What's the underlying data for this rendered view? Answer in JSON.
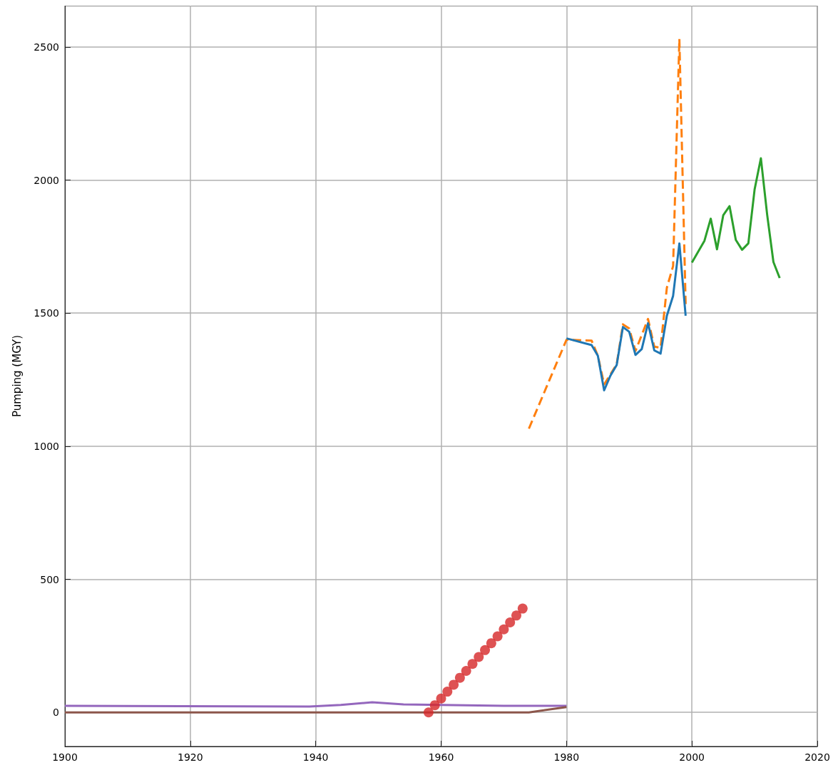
{
  "chart_data": {
    "type": "line",
    "ylabel": "Pumping (MGY)",
    "xlim": [
      1900,
      2020
    ],
    "xticks": [
      1900,
      1920,
      1940,
      1960,
      1980,
      2000,
      2020
    ],
    "ylim": [
      -128,
      2655
    ],
    "yticks": [
      0,
      500,
      1000,
      1500,
      2000,
      2500
    ],
    "grid": true,
    "series": [
      {
        "color": "#ff7f0e",
        "line_style": "dashed",
        "marker": "none",
        "x": [
          1974,
          1980,
          1984,
          1985,
          1986,
          1988,
          1989,
          1990,
          1991,
          1993,
          1994,
          1995,
          1996,
          1997,
          1998,
          1999
        ],
        "values": [
          1066,
          1400,
          1397,
          1340,
          1232,
          1308,
          1458,
          1442,
          1358,
          1478,
          1374,
          1370,
          1595,
          1677,
          2530,
          1534
        ]
      },
      {
        "color": "#1f77b4",
        "line_style": "solid",
        "marker": "none",
        "x": [
          1980,
          1984,
          1985,
          1986,
          1987,
          1988,
          1989,
          1990,
          1991,
          1992,
          1993,
          1994,
          1995,
          1996,
          1997,
          1998,
          1999
        ],
        "values": [
          1405,
          1380,
          1340,
          1210,
          1265,
          1305,
          1448,
          1430,
          1343,
          1365,
          1462,
          1360,
          1348,
          1490,
          1565,
          1762,
          1490
        ]
      },
      {
        "color": "#2ca02c",
        "line_style": "solid",
        "marker": "none",
        "x": [
          2000,
          2002,
          2003,
          2004,
          2005,
          2006,
          2007,
          2008,
          2009,
          2010,
          2011,
          2012,
          2013,
          2014
        ],
        "values": [
          1690,
          1772,
          1855,
          1740,
          1868,
          1902,
          1775,
          1738,
          1762,
          1965,
          2082,
          1870,
          1692,
          1632
        ]
      },
      {
        "type": "scatter",
        "color": "#d62728",
        "marker": "circle",
        "x": [
          1958,
          1959,
          1960,
          1961,
          1962,
          1963,
          1964,
          1965,
          1966,
          1967,
          1968,
          1969,
          1970,
          1971,
          1972,
          1973
        ],
        "values": [
          0,
          27,
          52,
          78,
          104,
          130,
          156,
          182,
          208,
          234,
          260,
          286,
          312,
          338,
          364,
          390
        ]
      },
      {
        "color": "#9467bd",
        "line_style": "solid",
        "marker": "none",
        "x": [
          1900,
          1939,
          1944,
          1949,
          1954,
          1960,
          1970,
          1980
        ],
        "values": [
          25,
          22,
          28,
          38,
          30,
          28,
          25,
          25
        ]
      },
      {
        "color": "#8c564b",
        "line_style": "solid",
        "marker": "none",
        "x": [
          1900,
          1974,
          1980
        ],
        "values": [
          0,
          0,
          20
        ]
      }
    ]
  }
}
